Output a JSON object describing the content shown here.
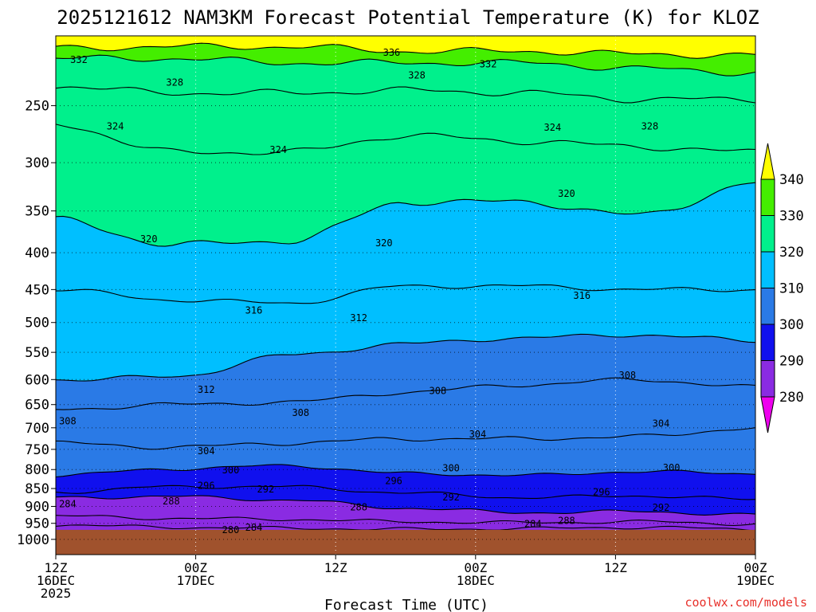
{
  "colors": {
    "ground": "#a0522d",
    "band_270_280": "#ee00ee",
    "band_280_290": "#8a2be2",
    "band_290_300": "#1010ee",
    "band_300_310": "#2a7ae6",
    "band_310_320": "#00bfff",
    "band_320_330": "#00f08c",
    "band_330_340": "#44ee00",
    "band_340_350": "#ffff00",
    "credit": "#e8302a"
  },
  "chart_data": {
    "type": "heatmap",
    "title": "2025121612 NAM3KM Forecast Potential Temperature (K) for KLOZ",
    "xlabel": "Forecast Time (UTC)",
    "ylabel": "",
    "credit": "coolwx.com/models",
    "y_axis": {
      "scale": "log-pressure",
      "ylim": [
        1050,
        200
      ],
      "ticks": [
        250,
        300,
        350,
        400,
        450,
        500,
        550,
        600,
        650,
        700,
        750,
        800,
        850,
        900,
        950,
        1000
      ],
      "grid": true
    },
    "x_axis": {
      "ticks": [
        {
          "line1": "12Z",
          "line2": "16DEC",
          "line3": "2025"
        },
        {
          "line1": "00Z",
          "line2": "17DEC",
          "line3": ""
        },
        {
          "line1": "12Z",
          "line2": "",
          "line3": ""
        },
        {
          "line1": "00Z",
          "line2": "18DEC",
          "line3": ""
        },
        {
          "line1": "12Z",
          "line2": "",
          "line3": ""
        },
        {
          "line1": "00Z",
          "line2": "19DEC",
          "line3": ""
        }
      ],
      "grid": true
    },
    "colorbar": {
      "levels": [
        280,
        290,
        300,
        310,
        320,
        330,
        340
      ],
      "units": "K"
    },
    "ground_pressure_hPa": 970,
    "contour_interval": 4,
    "contours": [
      {
        "value": 280,
        "p": [
          980,
          978,
          980,
          982,
          980,
          978,
          978
        ]
      },
      {
        "value": 284,
        "p": [
          955,
          962,
          965,
          968,
          966,
          962,
          968
        ]
      },
      {
        "value": 288,
        "p": [
          928,
          935,
          938,
          945,
          948,
          945,
          952
        ]
      },
      {
        "value": 292,
        "p": [
          875,
          872,
          882,
          905,
          918,
          915,
          925
        ]
      },
      {
        "value": 296,
        "p": [
          860,
          845,
          845,
          862,
          875,
          870,
          880
        ]
      },
      {
        "value": 300,
        "p": [
          815,
          798,
          790,
          810,
          815,
          805,
          810
        ]
      },
      {
        "value": 304,
        "p": [
          735,
          745,
          735,
          725,
          725,
          720,
          700
        ]
      },
      {
        "value": 308,
        "p": [
          660,
          650,
          645,
          625,
          610,
          600,
          615
        ]
      },
      {
        "value": 312,
        "p": [
          600,
          595,
          555,
          535,
          525,
          520,
          530
        ]
      },
      {
        "value": 316,
        "p": [
          450,
          465,
          470,
          445,
          445,
          450,
          450
        ]
      },
      {
        "value": 320,
        "p": [
          360,
          390,
          385,
          340,
          340,
          355,
          320
        ]
      },
      {
        "value": 324,
        "p": [
          265,
          290,
          290,
          275,
          280,
          285,
          290
        ]
      },
      {
        "value": 328,
        "p": [
          235,
          240,
          240,
          238,
          240,
          245,
          245
        ]
      },
      {
        "value": 332,
        "p": [
          215,
          215,
          218,
          218,
          218,
          222,
          225
        ]
      },
      {
        "value": 336,
        "p": [
          208,
          207,
          207,
          210,
          210,
          212,
          213
        ]
      }
    ],
    "contour_labels": [
      {
        "text": "332",
        "t": 0.033,
        "p": 216
      },
      {
        "text": "336",
        "t": 0.48,
        "p": 211
      },
      {
        "text": "332",
        "t": 0.618,
        "p": 219
      },
      {
        "text": "328",
        "t": 0.17,
        "p": 232
      },
      {
        "text": "328",
        "t": 0.516,
        "p": 227
      },
      {
        "text": "328",
        "t": 0.849,
        "p": 267
      },
      {
        "text": "324",
        "t": 0.085,
        "p": 267
      },
      {
        "text": "324",
        "t": 0.318,
        "p": 288
      },
      {
        "text": "324",
        "t": 0.71,
        "p": 268
      },
      {
        "text": "320",
        "t": 0.133,
        "p": 383
      },
      {
        "text": "320",
        "t": 0.469,
        "p": 388
      },
      {
        "text": "320",
        "t": 0.73,
        "p": 331
      },
      {
        "text": "316",
        "t": 0.283,
        "p": 481
      },
      {
        "text": "316",
        "t": 0.752,
        "p": 459
      },
      {
        "text": "312",
        "t": 0.433,
        "p": 493
      },
      {
        "text": "312",
        "t": 0.215,
        "p": 620
      },
      {
        "text": "308",
        "t": 0.546,
        "p": 622
      },
      {
        "text": "308",
        "t": 0.817,
        "p": 592
      },
      {
        "text": "308",
        "t": 0.017,
        "p": 685
      },
      {
        "text": "308",
        "t": 0.35,
        "p": 667
      },
      {
        "text": "304",
        "t": 0.215,
        "p": 754
      },
      {
        "text": "304",
        "t": 0.603,
        "p": 715
      },
      {
        "text": "304",
        "t": 0.865,
        "p": 691
      },
      {
        "text": "300",
        "t": 0.25,
        "p": 802
      },
      {
        "text": "300",
        "t": 0.565,
        "p": 796
      },
      {
        "text": "300",
        "t": 0.88,
        "p": 795
      },
      {
        "text": "296",
        "t": 0.215,
        "p": 842
      },
      {
        "text": "296",
        "t": 0.483,
        "p": 830
      },
      {
        "text": "296",
        "t": 0.78,
        "p": 860
      },
      {
        "text": "292",
        "t": 0.3,
        "p": 852
      },
      {
        "text": "292",
        "t": 0.565,
        "p": 874
      },
      {
        "text": "292",
        "t": 0.865,
        "p": 904
      },
      {
        "text": "288",
        "t": 0.165,
        "p": 885
      },
      {
        "text": "288",
        "t": 0.433,
        "p": 902
      },
      {
        "text": "288",
        "t": 0.73,
        "p": 942
      },
      {
        "text": "284",
        "t": 0.017,
        "p": 893
      },
      {
        "text": "284",
        "t": 0.283,
        "p": 963
      },
      {
        "text": "284",
        "t": 0.682,
        "p": 952
      },
      {
        "text": "280",
        "t": 0.25,
        "p": 970
      }
    ]
  }
}
